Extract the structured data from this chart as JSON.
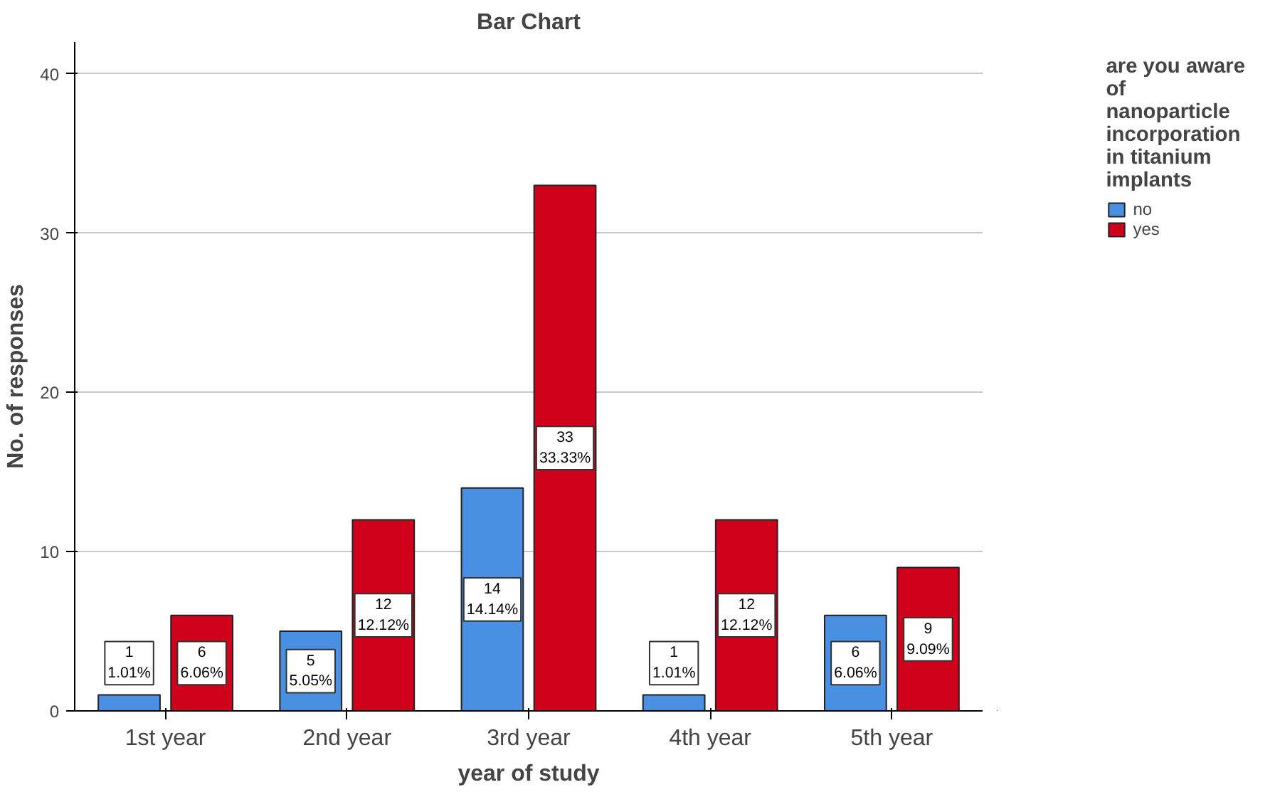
{
  "chart_data": {
    "type": "bar",
    "title": "Bar Chart",
    "xlabel": "year of study",
    "ylabel": "No. of responses",
    "legend_title": "are you aware of nanoparticle incorporation in titanium implants",
    "categories": [
      "1st year",
      "2nd year",
      "3rd year",
      "4th year",
      "5th year"
    ],
    "series": [
      {
        "name": "no",
        "color": "#4a90e2",
        "values": [
          1,
          5,
          14,
          1,
          6
        ],
        "value_labels": [
          "1\n1.01%",
          "5\n5.05%",
          "14\n14.14%",
          "1\n1.01%",
          "6\n6.06%"
        ]
      },
      {
        "name": "yes",
        "color": "#d0021b",
        "values": [
          6,
          12,
          33,
          12,
          9
        ],
        "value_labels": [
          "6\n6.06%",
          "12\n12.12%",
          "33\n33.33%",
          "12\n12.12%",
          "9\n9.09%"
        ]
      }
    ],
    "ylim": [
      0,
      42
    ],
    "yticks": [
      0,
      10,
      20,
      30,
      40
    ],
    "grid": "y",
    "legend": "top right"
  }
}
